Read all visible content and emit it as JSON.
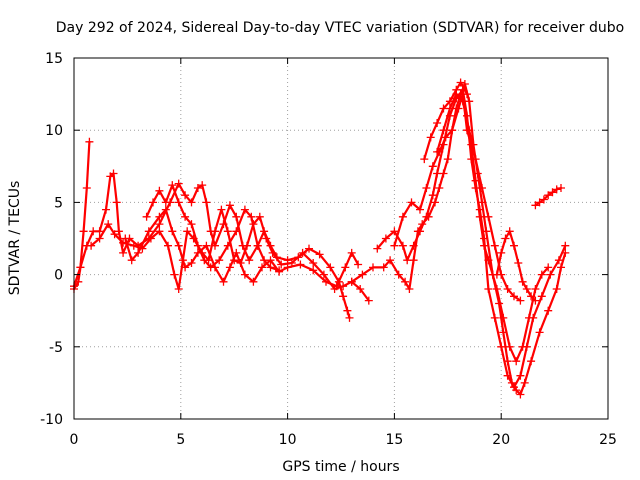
{
  "chart_data": {
    "type": "scatter",
    "title": "Day 292 of 2024, Sidereal Day-to-day VTEC variation (SDTVAR) for receiver dubo",
    "xlabel": "GPS time / hours",
    "ylabel": "SDTVAR / TECUs",
    "xlim": [
      0,
      25
    ],
    "ylim": [
      -10,
      15
    ],
    "xticks": [
      0,
      5,
      10,
      15,
      20,
      25
    ],
    "yticks": [
      -10,
      -5,
      0,
      5,
      10,
      15
    ],
    "xtick_labels": [
      "0",
      "5",
      "10",
      "15",
      "20",
      "25"
    ],
    "ytick_labels": [
      "-10",
      "-5",
      "0",
      "5",
      "10",
      "15"
    ],
    "grid": true,
    "marker": "+",
    "color": "#ff0000",
    "series": [
      {
        "name": "s1",
        "points": [
          [
            0,
            -1
          ],
          [
            0.2,
            -0.5
          ],
          [
            0.3,
            0.5
          ],
          [
            0.45,
            3
          ],
          [
            0.6,
            6
          ],
          [
            0.72,
            9.2
          ]
        ]
      },
      {
        "name": "s2",
        "points": [
          [
            0,
            -0.8
          ],
          [
            0.3,
            0.5
          ],
          [
            0.6,
            2
          ],
          [
            0.9,
            3
          ],
          [
            1.2,
            3
          ],
          [
            1.5,
            4.5
          ],
          [
            1.7,
            6.8
          ],
          [
            1.85,
            7
          ],
          [
            2,
            5
          ],
          [
            2.1,
            3
          ],
          [
            2.3,
            1.5
          ],
          [
            2.6,
            2.5
          ],
          [
            3,
            2
          ],
          [
            3.5,
            2.5
          ],
          [
            4,
            3.5
          ],
          [
            4.5,
            5
          ],
          [
            4.9,
            6.3
          ],
          [
            5.2,
            5.5
          ],
          [
            5.5,
            5
          ],
          [
            5.8,
            6
          ],
          [
            6,
            6.2
          ],
          [
            6.2,
            5
          ],
          [
            6.4,
            3
          ],
          [
            6.6,
            2
          ],
          [
            7,
            3.5
          ],
          [
            7.3,
            4.8
          ],
          [
            7.6,
            4
          ],
          [
            7.9,
            2
          ],
          [
            8.2,
            1
          ],
          [
            8.6,
            2
          ],
          [
            8.9,
            3
          ],
          [
            9.2,
            2
          ],
          [
            9.5,
            1.2
          ],
          [
            10,
            1
          ],
          [
            10.5,
            1.2
          ],
          [
            11,
            1.8
          ],
          [
            11.5,
            1.4
          ],
          [
            12,
            0.5
          ],
          [
            12.4,
            -0.5
          ],
          [
            12.6,
            -1.5
          ],
          [
            12.8,
            -2.5
          ],
          [
            12.9,
            -3
          ]
        ]
      },
      {
        "name": "s3",
        "points": [
          [
            0.8,
            2
          ],
          [
            1.2,
            2.5
          ],
          [
            1.6,
            3.5
          ],
          [
            1.9,
            2.8
          ],
          [
            2.3,
            2.2
          ],
          [
            2.8,
            2
          ],
          [
            3.2,
            1.8
          ],
          [
            3.6,
            2.5
          ],
          [
            4,
            3
          ],
          [
            4.4,
            2
          ],
          [
            4.7,
            0
          ],
          [
            4.9,
            -1
          ],
          [
            5.1,
            1
          ],
          [
            5.3,
            3
          ],
          [
            5.6,
            2.5
          ],
          [
            6,
            1.5
          ],
          [
            6.3,
            1
          ],
          [
            6.6,
            3
          ],
          [
            6.9,
            4.5
          ],
          [
            7.2,
            3
          ],
          [
            7.5,
            1
          ],
          [
            7.8,
            0.8
          ],
          [
            8.1,
            2
          ],
          [
            8.4,
            3.5
          ],
          [
            8.7,
            4
          ],
          [
            9,
            2.5
          ],
          [
            9.3,
            1.5
          ],
          [
            9.7,
            0.7
          ],
          [
            10.2,
            0.8
          ],
          [
            10.7,
            1.5
          ],
          [
            11.2,
            0.8
          ],
          [
            11.7,
            0
          ],
          [
            12.2,
            -1
          ],
          [
            12.6,
            -0.8
          ],
          [
            13,
            -0.5
          ],
          [
            13.4,
            -1
          ],
          [
            13.8,
            -1.8
          ]
        ]
      },
      {
        "name": "s4",
        "points": [
          [
            2.4,
            2.5
          ],
          [
            2.7,
            1
          ],
          [
            3,
            1.5
          ],
          [
            3.5,
            3
          ],
          [
            4,
            4
          ],
          [
            4.3,
            4.5
          ],
          [
            4.6,
            3
          ],
          [
            4.9,
            2
          ],
          [
            5.2,
            0.5
          ],
          [
            5.5,
            0.8
          ],
          [
            5.8,
            1.5
          ],
          [
            6.2,
            2
          ],
          [
            6.6,
            0.5
          ],
          [
            7,
            -0.5
          ],
          [
            7.3,
            0.5
          ],
          [
            7.6,
            1.5
          ],
          [
            8,
            0
          ],
          [
            8.4,
            -0.5
          ],
          [
            8.8,
            0.5
          ],
          [
            9.2,
            1
          ],
          [
            9.6,
            0.2
          ],
          [
            10,
            0.5
          ],
          [
            10.6,
            0.7
          ],
          [
            11.2,
            0.3
          ],
          [
            11.8,
            -0.5
          ],
          [
            12.3,
            -0.8
          ],
          [
            12.7,
            0.5
          ],
          [
            13,
            1.5
          ],
          [
            13.3,
            0.7
          ]
        ]
      },
      {
        "name": "s5",
        "points": [
          [
            3.4,
            4
          ],
          [
            3.7,
            5
          ],
          [
            4,
            5.8
          ],
          [
            4.3,
            5
          ],
          [
            4.6,
            6.2
          ],
          [
            4.9,
            5
          ],
          [
            5.2,
            4
          ],
          [
            5.5,
            3.5
          ],
          [
            5.8,
            2
          ],
          [
            6.1,
            1
          ],
          [
            6.4,
            0.5
          ],
          [
            6.8,
            1
          ],
          [
            7.2,
            2
          ],
          [
            7.6,
            3
          ],
          [
            8,
            4.5
          ],
          [
            8.3,
            4
          ],
          [
            8.6,
            2
          ],
          [
            8.9,
            1
          ],
          [
            9.2,
            0.5
          ],
          [
            9.6,
            0.3
          ]
        ]
      },
      {
        "name": "s6",
        "points": [
          [
            13,
            -0.5
          ],
          [
            13.5,
            0
          ],
          [
            14,
            0.5
          ],
          [
            14.5,
            0.5
          ],
          [
            14.8,
            1
          ],
          [
            15.2,
            0
          ],
          [
            15.5,
            -0.5
          ],
          [
            15.7,
            -1
          ],
          [
            15.9,
            1
          ],
          [
            16.1,
            3
          ],
          [
            16.3,
            3.5
          ],
          [
            16.6,
            4
          ],
          [
            16.9,
            5
          ],
          [
            17.1,
            6
          ],
          [
            17.3,
            7
          ],
          [
            17.5,
            8
          ],
          [
            17.7,
            10
          ],
          [
            17.9,
            11.5
          ],
          [
            18.1,
            12.5
          ],
          [
            18.3,
            13.2
          ],
          [
            18.5,
            12
          ],
          [
            18.7,
            9
          ],
          [
            18.9,
            7
          ],
          [
            19.1,
            5
          ],
          [
            19.3,
            3
          ],
          [
            19.6,
            0
          ],
          [
            19.9,
            -2
          ],
          [
            20.1,
            -4
          ],
          [
            20.3,
            -6
          ],
          [
            20.5,
            -7.5
          ],
          [
            20.7,
            -8
          ],
          [
            20.9,
            -8.3
          ],
          [
            21.1,
            -7.5
          ],
          [
            21.4,
            -6
          ],
          [
            21.8,
            -4
          ],
          [
            22.2,
            -2.5
          ],
          [
            22.6,
            -1
          ],
          [
            22.8,
            0.5
          ],
          [
            23,
            1.5
          ]
        ]
      },
      {
        "name": "s7",
        "points": [
          [
            14.2,
            1.8
          ],
          [
            14.6,
            2.5
          ],
          [
            15,
            3
          ],
          [
            15.4,
            2
          ],
          [
            15.6,
            1
          ],
          [
            15.9,
            2
          ],
          [
            16.2,
            3
          ],
          [
            16.5,
            4
          ],
          [
            16.8,
            5.5
          ],
          [
            17,
            7
          ],
          [
            17.3,
            9
          ],
          [
            17.6,
            11
          ],
          [
            17.9,
            12.2
          ],
          [
            18.2,
            12.8
          ],
          [
            18.4,
            11
          ],
          [
            18.6,
            8
          ],
          [
            18.8,
            6
          ],
          [
            19,
            4.5
          ],
          [
            19.2,
            2.5
          ],
          [
            19.4,
            -1
          ],
          [
            19.7,
            -3
          ],
          [
            20,
            -5
          ],
          [
            20.3,
            -7
          ],
          [
            20.6,
            -7.8
          ],
          [
            20.9,
            -7
          ],
          [
            21.2,
            -5
          ],
          [
            21.5,
            -3
          ],
          [
            21.9,
            -1.5
          ],
          [
            22.3,
            0
          ],
          [
            22.7,
            1
          ],
          [
            23,
            2
          ]
        ]
      },
      {
        "name": "s8",
        "points": [
          [
            15,
            2
          ],
          [
            15.4,
            4
          ],
          [
            15.8,
            5
          ],
          [
            16.2,
            4.5
          ],
          [
            16.5,
            6
          ],
          [
            16.8,
            7.5
          ],
          [
            17.1,
            8.5
          ],
          [
            17.4,
            9.5
          ],
          [
            17.7,
            10
          ],
          [
            18,
            11.5
          ],
          [
            18.2,
            12.5
          ],
          [
            18.4,
            10
          ],
          [
            18.6,
            9
          ],
          [
            18.8,
            6.5
          ],
          [
            19,
            4
          ],
          [
            19.2,
            2
          ],
          [
            19.4,
            1
          ],
          [
            19.6,
            0
          ],
          [
            19.8,
            -1
          ],
          [
            20.1,
            -3
          ],
          [
            20.4,
            -5
          ],
          [
            20.7,
            -6
          ],
          [
            21,
            -5
          ],
          [
            21.3,
            -3
          ],
          [
            21.6,
            -1
          ],
          [
            21.9,
            0
          ],
          [
            22.2,
            0.5
          ]
        ]
      },
      {
        "name": "s9",
        "points": [
          [
            17,
            8.5
          ],
          [
            17.3,
            10
          ],
          [
            17.6,
            11.5
          ],
          [
            17.9,
            12.5
          ],
          [
            18.2,
            12
          ],
          [
            18.5,
            10
          ],
          [
            18.8,
            8
          ],
          [
            19.1,
            6
          ],
          [
            19.4,
            4
          ],
          [
            19.7,
            2
          ],
          [
            20,
            0
          ],
          [
            20.3,
            -1
          ],
          [
            20.6,
            -1.5
          ],
          [
            20.9,
            -1.8
          ]
        ]
      },
      {
        "name": "s10",
        "points": [
          [
            16.4,
            8
          ],
          [
            16.7,
            9.5
          ],
          [
            17,
            10.5
          ],
          [
            17.3,
            11.5
          ],
          [
            17.6,
            12
          ],
          [
            17.9,
            12.8
          ],
          [
            18.1,
            13.3
          ],
          [
            18.4,
            12.5
          ]
        ]
      },
      {
        "name": "s11",
        "points": [
          [
            21.6,
            4.8
          ],
          [
            21.8,
            5
          ],
          [
            22,
            5.2
          ],
          [
            22.2,
            5.5
          ],
          [
            22.4,
            5.7
          ],
          [
            22.6,
            5.9
          ],
          [
            22.8,
            6
          ]
        ]
      },
      {
        "name": "s12",
        "points": [
          [
            19.8,
            0
          ],
          [
            20,
            1.5
          ],
          [
            20.2,
            2.5
          ],
          [
            20.4,
            3
          ],
          [
            20.6,
            2
          ],
          [
            20.8,
            0.8
          ],
          [
            21,
            -0.5
          ],
          [
            21.2,
            -1
          ],
          [
            21.4,
            -1.5
          ],
          [
            21.6,
            -1.8
          ]
        ]
      }
    ]
  }
}
